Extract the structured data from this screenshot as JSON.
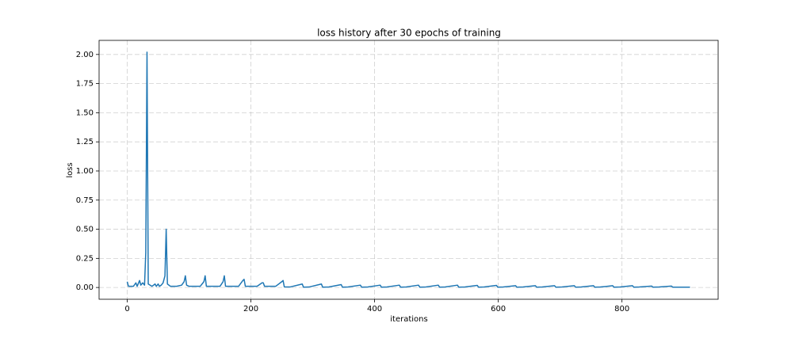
{
  "chart_data": {
    "type": "line",
    "title": "loss history after 30 epochs of training",
    "xlabel": "iterations",
    "ylabel": "loss",
    "xlim": [
      -45.5,
      955.5
    ],
    "ylim": [
      -0.101,
      2.121
    ],
    "xticks": [
      0,
      200,
      400,
      600,
      800
    ],
    "yticks": [
      {
        "value": 0,
        "label": "0.00"
      },
      {
        "value": 0.25,
        "label": "0.25"
      },
      {
        "value": 0.5,
        "label": "0.50"
      },
      {
        "value": 0.75,
        "label": "0.75"
      },
      {
        "value": 1,
        "label": "1.00"
      },
      {
        "value": 1.25,
        "label": "1.25"
      },
      {
        "value": 1.5,
        "label": "1.50"
      },
      {
        "value": 1.75,
        "label": "1.75"
      },
      {
        "value": 2,
        "label": "2.00"
      }
    ],
    "grid": true,
    "series": [
      {
        "color": "#1f77b4",
        "x": [
          0,
          2,
          10,
          14,
          16,
          20,
          22,
          25,
          28,
          30,
          32,
          34,
          40,
          45,
          47,
          50,
          52,
          55,
          58,
          61,
          63,
          65,
          70,
          80,
          88,
          92,
          94,
          96,
          100,
          110,
          118,
          124,
          126,
          128,
          135,
          145,
          150,
          155,
          157,
          159,
          170,
          180,
          187,
          189,
          191,
          200,
          210,
          218,
          220,
          222,
          232,
          240,
          250,
          252,
          254,
          263,
          283,
          285,
          294,
          314,
          316,
          326,
          346,
          348,
          357,
          377,
          379,
          389,
          409,
          411,
          420,
          440,
          442,
          451,
          471,
          473,
          483,
          503,
          505,
          514,
          534,
          536,
          546,
          566,
          568,
          577,
          597,
          599,
          608,
          628,
          630,
          640,
          660,
          662,
          671,
          691,
          693,
          703,
          723,
          725,
          734,
          754,
          756,
          765,
          785,
          787,
          797,
          817,
          819,
          828,
          848,
          850,
          860,
          880,
          882,
          910
        ],
        "values": [
          0.05,
          0.01,
          0.01,
          0.04,
          0.01,
          0.06,
          0.02,
          0.04,
          0.02,
          0.3,
          2.02,
          0.03,
          0.01,
          0.03,
          0.01,
          0.03,
          0.01,
          0.02,
          0.04,
          0.1,
          0.5,
          0.03,
          0.01,
          0.01,
          0.02,
          0.05,
          0.1,
          0.02,
          0.01,
          0.01,
          0.01,
          0.05,
          0.1,
          0.01,
          0.01,
          0.01,
          0.01,
          0.05,
          0.1,
          0.01,
          0.01,
          0.01,
          0.06,
          0.07,
          0.01,
          0.01,
          0.01,
          0.04,
          0.04,
          0.01,
          0.01,
          0.01,
          0.05,
          0.06,
          0.005,
          0.004,
          0.03,
          0.003,
          0.004,
          0.03,
          0.003,
          0.004,
          0.025,
          0.003,
          0.004,
          0.02,
          0.003,
          0.004,
          0.02,
          0.003,
          0.004,
          0.02,
          0.003,
          0.004,
          0.02,
          0.003,
          0.004,
          0.02,
          0.003,
          0.004,
          0.02,
          0.003,
          0.004,
          0.018,
          0.003,
          0.004,
          0.018,
          0.003,
          0.004,
          0.015,
          0.003,
          0.004,
          0.015,
          0.003,
          0.004,
          0.015,
          0.003,
          0.004,
          0.015,
          0.003,
          0.004,
          0.015,
          0.003,
          0.004,
          0.015,
          0.003,
          0.004,
          0.015,
          0.003,
          0.004,
          0.012,
          0.003,
          0.004,
          0.012,
          0.003,
          0.003
        ]
      }
    ]
  }
}
